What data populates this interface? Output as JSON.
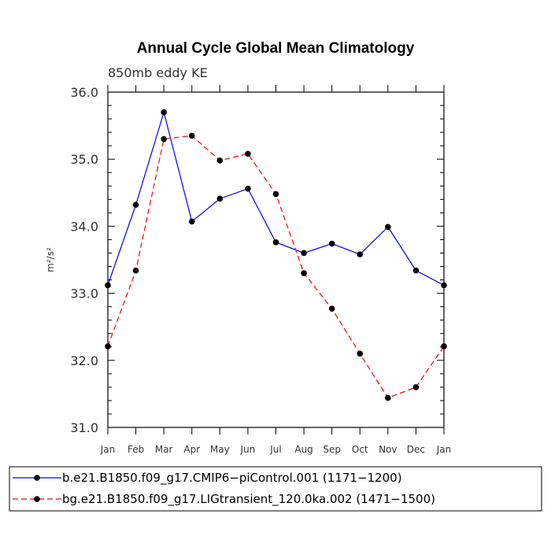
{
  "chart_data": {
    "type": "line",
    "title": "Annual Cycle Global Mean Climatology",
    "subtitle": "850mb eddy KE",
    "ylabel": "m²/s²",
    "xlabel": "",
    "categories": [
      "Jan",
      "Feb",
      "Mar",
      "Apr",
      "May",
      "Jun",
      "Jul",
      "Aug",
      "Sep",
      "Oct",
      "Nov",
      "Dec",
      "Jan"
    ],
    "ylim": [
      31.0,
      36.0
    ],
    "yticks": [
      "31.0",
      "32.0",
      "33.0",
      "34.0",
      "35.0",
      "36.0"
    ],
    "grid": false,
    "legend_position": "bottom",
    "series": [
      {
        "name": "b.e21.B1850.f09_g17.CMIP6−piControl.001 (1171−1200)",
        "color": "#0000ff",
        "style": "solid",
        "marker": "filled-circle",
        "values": [
          33.12,
          34.32,
          35.7,
          34.07,
          34.41,
          34.56,
          33.76,
          33.6,
          33.74,
          33.58,
          33.99,
          33.34,
          33.12
        ]
      },
      {
        "name": "bg.e21.B1850.f09_g17.LIGtransient_120.0ka.002 (1471−1500)",
        "color": "#ff0000",
        "style": "dashed",
        "marker": "filled-circle",
        "values": [
          32.21,
          33.34,
          35.3,
          35.35,
          34.98,
          35.08,
          34.48,
          33.3,
          32.77,
          32.1,
          31.44,
          31.6,
          32.21
        ]
      }
    ]
  }
}
